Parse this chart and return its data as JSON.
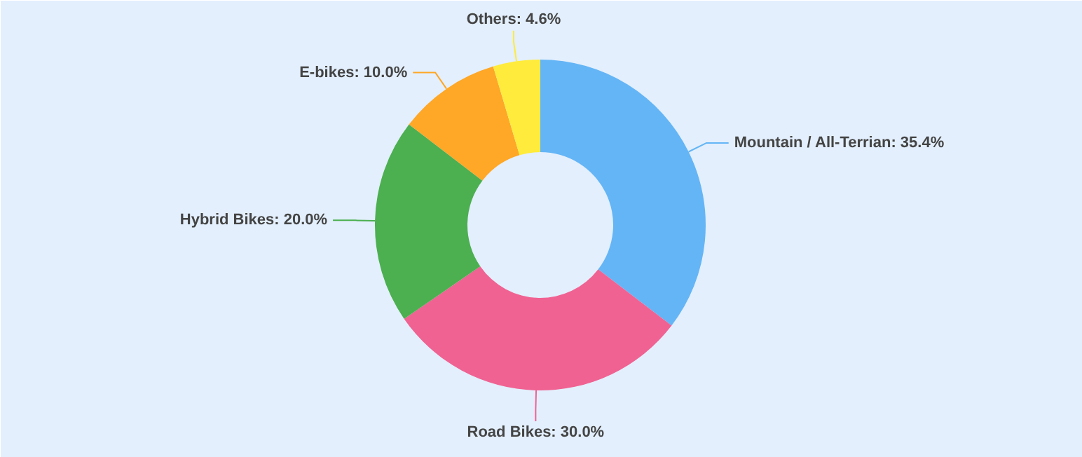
{
  "chart_data": {
    "type": "donut",
    "categories": [
      "Mountain / All-Terrian",
      "Road Bikes",
      "Hybrid Bikes",
      "E-bikes",
      "Others"
    ],
    "values": [
      35.4,
      30.0,
      20.0,
      10.0,
      4.6
    ],
    "value_labels": [
      "35.4%",
      "30.0%",
      "20.0%",
      "10.0%",
      "4.6%"
    ],
    "colors": [
      "#64b5f6",
      "#f06292",
      "#4caf50",
      "#ffa726",
      "#ffeb3b"
    ]
  }
}
